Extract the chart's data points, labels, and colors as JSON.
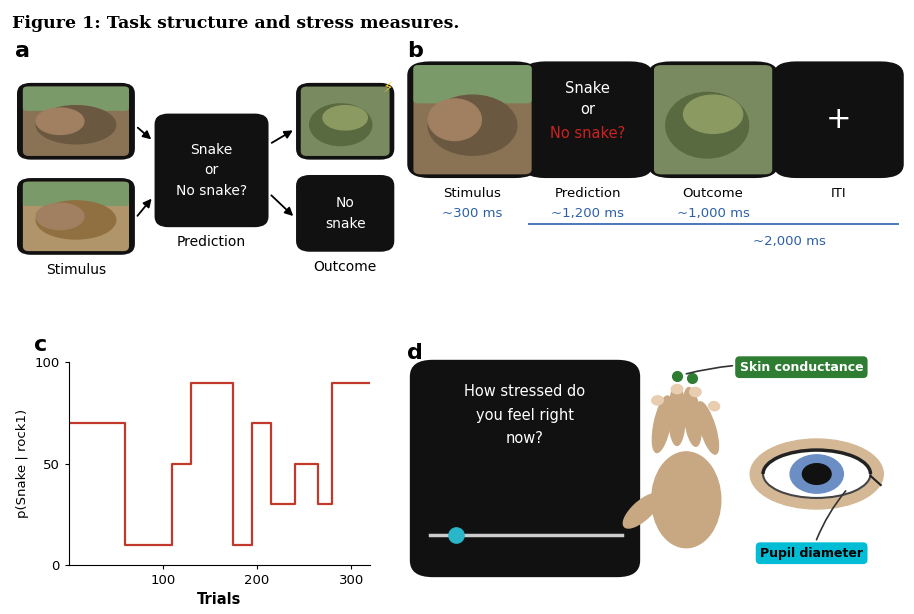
{
  "title": "Figure 1: Task structure and stress measures.",
  "title_fontsize": 12.5,
  "title_fontweight": "bold",
  "panel_c_xlabel": "Trials",
  "panel_c_ylabel": "p(Snake | rock1)",
  "panel_c_xlim": [
    0,
    320
  ],
  "panel_c_ylim": [
    0,
    100
  ],
  "panel_c_xticks": [
    100,
    200,
    300
  ],
  "panel_c_yticks": [
    0,
    50,
    100
  ],
  "panel_c_color": "#c0392b",
  "panel_c_x": [
    0,
    60,
    60,
    110,
    110,
    130,
    130,
    175,
    175,
    195,
    195,
    215,
    215,
    240,
    240,
    265,
    265,
    280,
    280,
    320
  ],
  "panel_c_y": [
    70,
    70,
    10,
    10,
    50,
    50,
    90,
    90,
    10,
    10,
    70,
    70,
    30,
    30,
    50,
    50,
    30,
    30,
    90,
    90
  ],
  "panel_a_label": "a",
  "panel_b_label": "b",
  "panel_c_label": "c",
  "panel_d_label": "d",
  "panel_b_time_color": "#2c5faa",
  "panel_d_question": "How stressed do\nyou feel right\nnow?",
  "panel_d_skin_label": "Skin conductance",
  "panel_d_pupil_label": "Pupil diameter",
  "panel_d_skin_color": "#2e7d32",
  "panel_d_pupil_color": "#00bcd4",
  "bg_color": "#ffffff",
  "box_black": "#111111",
  "box_text_red": "#cc2222"
}
